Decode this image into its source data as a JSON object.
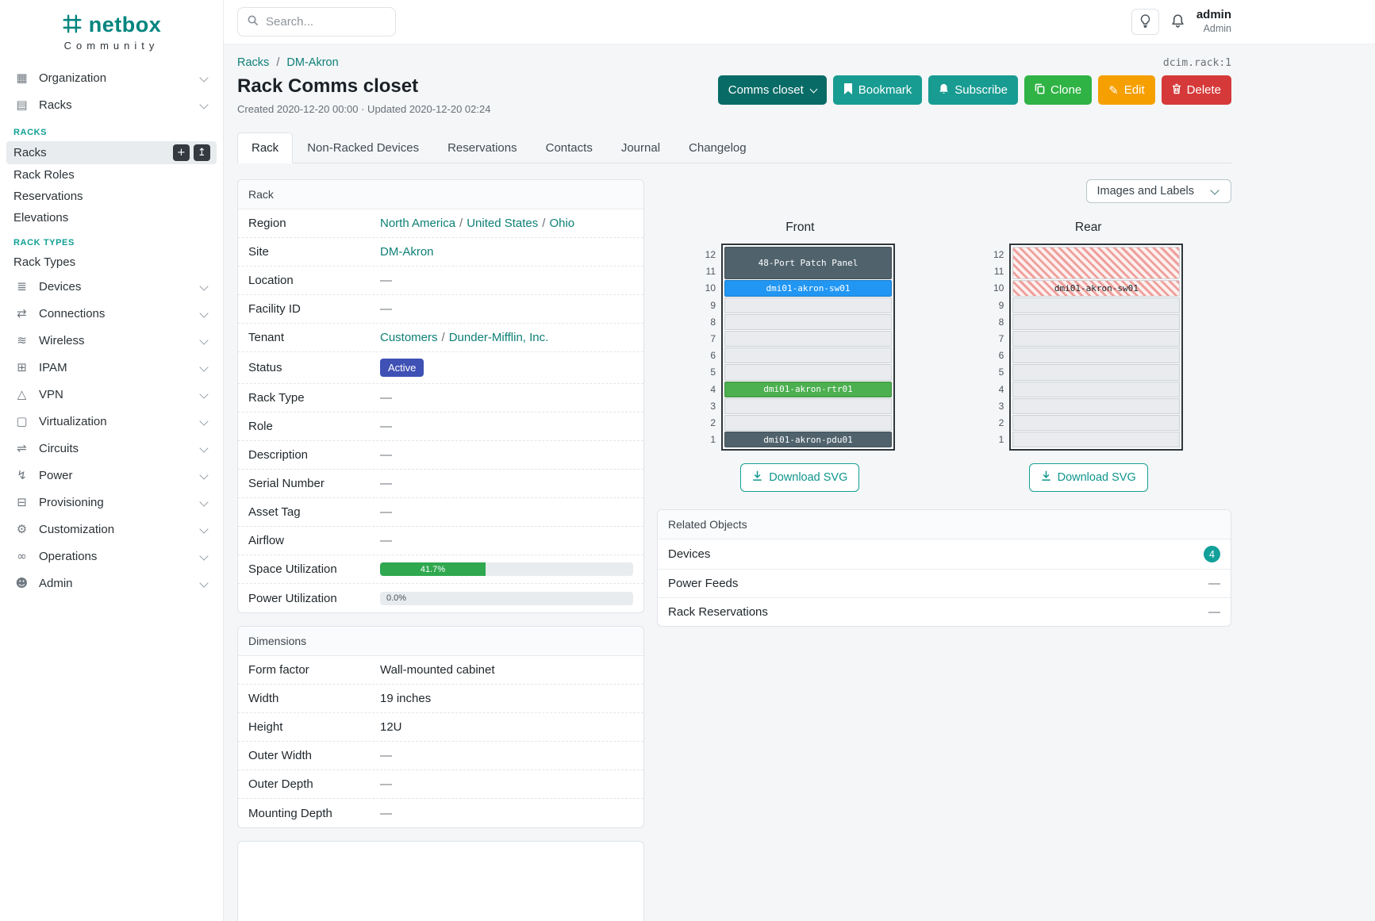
{
  "misc": {
    "link_separator": "/"
  },
  "colors": {
    "brand_teal": "#00857e",
    "link_teal": "#0e8077",
    "button_dark_teal": "#086b66",
    "button_teal": "#189c92",
    "button_green": "#2fb344",
    "button_orange": "#f59f00",
    "button_red": "#d63939",
    "status_active_badge": "#3f51b5",
    "progress_green": "#2fa84f",
    "related_badge_teal": "#12a09a"
  },
  "sidebar": {
    "logo": {
      "name": "netbox",
      "tagline": "Community"
    },
    "top_items": [
      {
        "label": "Organization"
      },
      {
        "label": "Racks"
      }
    ],
    "racks_panel": {
      "section_racks": "RACKS",
      "racks_item": "Racks",
      "add_glyph": "+",
      "import_glyph": "↥",
      "items": [
        "Rack Roles",
        "Reservations",
        "Elevations"
      ],
      "section_rack_types": "RACK TYPES",
      "rack_types_item": "Rack Types"
    },
    "bottom_items": [
      {
        "label": "Devices"
      },
      {
        "label": "Connections"
      },
      {
        "label": "Wireless"
      },
      {
        "label": "IPAM"
      },
      {
        "label": "VPN"
      },
      {
        "label": "Virtualization"
      },
      {
        "label": "Circuits"
      },
      {
        "label": "Power"
      },
      {
        "label": "Provisioning"
      },
      {
        "label": "Customization"
      },
      {
        "label": "Operations"
      },
      {
        "label": "Admin"
      }
    ],
    "icon_glyphs": {
      "building-icon": "▦",
      "rack-icon": "▤",
      "devices-icon": "≣",
      "connections-icon": "⇄",
      "wireless-icon": "≋",
      "ipam-icon": "⊞",
      "vpn-icon": "△",
      "virtualization-icon": "▢",
      "circuits-icon": "⇌",
      "power-icon": "↯",
      "provisioning-icon": "⊟",
      "customization-icon": "⚙",
      "operations-icon": "∞",
      "admin-icon": "☻"
    }
  },
  "topbar": {
    "search_placeholder": "Search...",
    "username": "admin",
    "user_role": "Admin"
  },
  "breadcrumb": {
    "racks": "Racks",
    "site": "DM-Akron",
    "object_ref": "dcim.rack:1"
  },
  "header": {
    "title": "Rack Comms closet",
    "meta": "Created 2020-12-20 00:00 · Updated 2020-12-20 02:24",
    "buttons": {
      "status": "Comms closet",
      "bookmark": "Bookmark",
      "subscribe": "Subscribe",
      "clone": "Clone",
      "edit": "Edit",
      "delete": "Delete"
    }
  },
  "tabs": [
    {
      "label": "Rack"
    },
    {
      "label": "Non-Racked Devices"
    },
    {
      "label": "Reservations"
    },
    {
      "label": "Contacts"
    },
    {
      "label": "Journal"
    },
    {
      "label": "Changelog"
    }
  ],
  "rack_card": {
    "title": "Rack",
    "rows": {
      "region": {
        "label": "Region",
        "links": [
          "North America",
          "United States",
          "Ohio"
        ]
      },
      "site": {
        "label": "Site",
        "link": "DM-Akron"
      },
      "location": {
        "label": "Location",
        "value": "—"
      },
      "facility_id": {
        "label": "Facility ID",
        "value": "—"
      },
      "tenant": {
        "label": "Tenant",
        "links": [
          "Customers",
          "Dunder-Mifflin, Inc."
        ]
      },
      "status": {
        "label": "Status",
        "badge": "Active"
      },
      "rack_type": {
        "label": "Rack Type",
        "value": "—"
      },
      "role": {
        "label": "Role",
        "value": "—"
      },
      "description": {
        "label": "Description",
        "value": "—"
      },
      "serial": {
        "label": "Serial Number",
        "value": "—"
      },
      "asset_tag": {
        "label": "Asset Tag",
        "value": "—"
      },
      "airflow": {
        "label": "Airflow",
        "value": "—"
      },
      "space": {
        "label": "Space Utilization",
        "percent": 41.7,
        "display": "41.7%"
      },
      "power": {
        "label": "Power Utilization",
        "percent": 0,
        "display": "0.0%"
      }
    }
  },
  "dimensions_card": {
    "title": "Dimensions",
    "rows": {
      "form_factor": {
        "label": "Form factor",
        "value": "Wall-mounted cabinet"
      },
      "width": {
        "label": "Width",
        "value": "19 inches"
      },
      "height": {
        "label": "Height",
        "value": "12U"
      },
      "outer_width": {
        "label": "Outer Width",
        "value": "—"
      },
      "outer_depth": {
        "label": "Outer Depth",
        "value": "—"
      },
      "mounting_depth": {
        "label": "Mounting Depth",
        "value": "—"
      }
    }
  },
  "elevation": {
    "view_select": "Images and Labels",
    "front_title": "Front",
    "rear_title": "Rear",
    "unit_numbers": [
      12,
      11,
      10,
      9,
      8,
      7,
      6,
      5,
      4,
      3,
      2,
      1
    ],
    "front_devices": {
      "patch_panel": {
        "name": "48-Port Patch Panel",
        "units": "11-12",
        "color": "#50636d"
      },
      "switch": {
        "name": "dmi01-akron-sw01",
        "units": "10",
        "color": "#2196f3"
      },
      "router": {
        "name": "dmi01-akron-rtr01",
        "units": "4",
        "color": "#4caf50"
      },
      "pdu": {
        "name": "dmi01-akron-pdu01",
        "units": "1",
        "color": "#50636d"
      }
    },
    "rear_devices": {
      "switch": {
        "name": "dmi01-akron-sw01",
        "units": "10"
      }
    },
    "download_label": "Download SVG"
  },
  "related_objects": {
    "title": "Related Objects",
    "rows": [
      {
        "label": "Devices",
        "badge": "4"
      },
      {
        "label": "Power Feeds",
        "value": "—"
      },
      {
        "label": "Rack Reservations",
        "value": "—"
      }
    ]
  }
}
